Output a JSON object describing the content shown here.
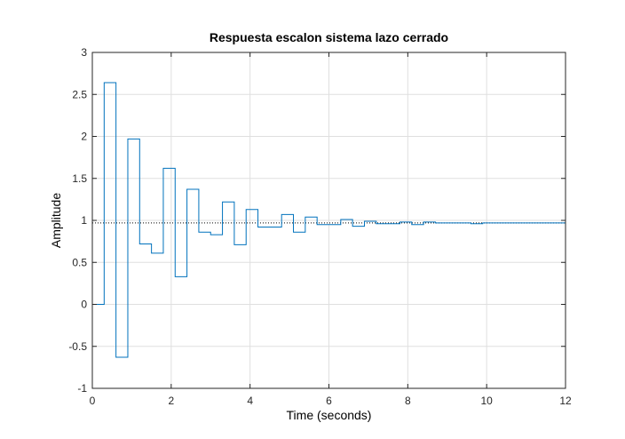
{
  "chart_data": {
    "type": "line",
    "title": "Respuesta escalon sistema lazo cerrado",
    "xlabel": "Time (seconds)",
    "ylabel": "Amplitude",
    "xlim": [
      0,
      12
    ],
    "ylim": [
      -1,
      3
    ],
    "xticks": [
      0,
      2,
      4,
      6,
      8,
      10,
      12
    ],
    "xtick_labels": [
      "0",
      "2",
      "4",
      "6",
      "8",
      "10",
      "12"
    ],
    "yticks": [
      -1,
      -0.5,
      0,
      0.5,
      1,
      1.5,
      2,
      2.5,
      3
    ],
    "ytick_labels": [
      "-1",
      "-0.5",
      "0",
      "0.5",
      "1",
      "1.5",
      "2",
      "2.5",
      "3"
    ],
    "grid": true,
    "legend": "none",
    "step": "post",
    "sample_time": 0.3,
    "series": [
      {
        "color": "#0072bd",
        "style": "stairs",
        "x": [
          0,
          0.3,
          0.6,
          0.9,
          1.2,
          1.5,
          1.8,
          2.1,
          2.4,
          2.7,
          3.0,
          3.3,
          3.6,
          3.9,
          4.2,
          4.5,
          4.8,
          5.1,
          5.4,
          5.7,
          6.0,
          6.3,
          6.6,
          6.9,
          7.2,
          7.5,
          7.8,
          8.1,
          8.4,
          8.7,
          9.0,
          9.3,
          9.6,
          9.9,
          12.0
        ],
        "values": [
          0,
          2.64,
          -0.63,
          1.97,
          0.72,
          0.61,
          1.62,
          0.33,
          1.37,
          0.86,
          0.83,
          1.22,
          0.71,
          1.13,
          0.92,
          0.92,
          1.07,
          0.86,
          1.04,
          0.95,
          0.95,
          1.01,
          0.93,
          0.99,
          0.96,
          0.96,
          0.98,
          0.95,
          0.98,
          0.97,
          0.97,
          0.97,
          0.96,
          0.97,
          0.97
        ]
      }
    ],
    "reference_line": {
      "value": 0.97,
      "color": "#000000",
      "style": "dotted"
    }
  }
}
